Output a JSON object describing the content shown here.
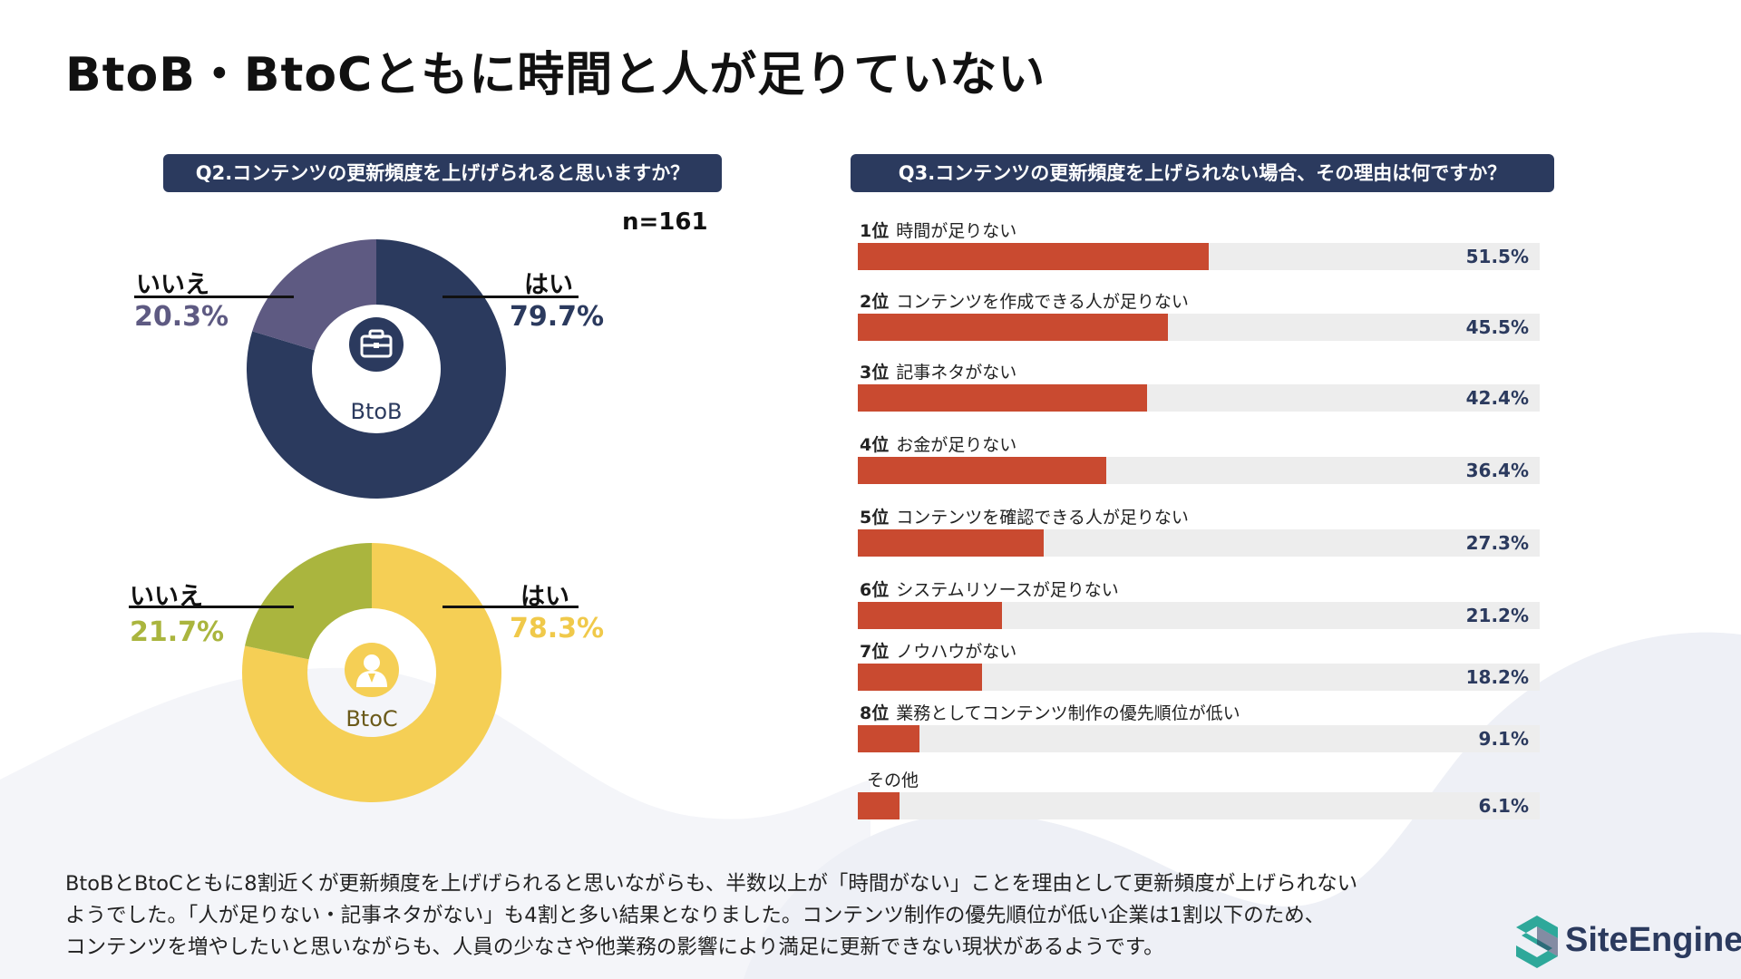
{
  "title": "BtoB・BtoCともに時間と人が足りていない",
  "q2": {
    "question": "Q2.コンテンツの更新頻度を上げげられると思いますか？",
    "n": "n=161"
  },
  "q3": {
    "question": "Q3.コンテンツの更新頻度を上げられない場合、その理由は何ですか？"
  },
  "colors": {
    "navy": "#2b3a5e",
    "purple": "#5e5a82",
    "yellow": "#f5cf55",
    "olive": "#aab53e",
    "bar": "#c94a30",
    "track": "#ededed"
  },
  "icons": {
    "btob": "briefcase-icon",
    "btoc": "person-icon",
    "logo": "siteengine-logo-icon"
  },
  "chart_data": [
    {
      "type": "pie",
      "center_label": "BtoB",
      "slices": [
        {
          "label": "はい",
          "value": 79.7,
          "display": "79.7%"
        },
        {
          "label": "いいえ",
          "value": 20.3,
          "display": "20.3%"
        }
      ]
    },
    {
      "type": "pie",
      "center_label": "BtoC",
      "slices": [
        {
          "label": "はい",
          "value": 78.3,
          "display": "78.3%"
        },
        {
          "label": "いいえ",
          "value": 21.7,
          "display": "21.7%"
        }
      ]
    },
    {
      "type": "bar",
      "orientation": "horizontal",
      "xlim": [
        0,
        100
      ],
      "bars": [
        {
          "rank": "1位",
          "label": "時間が足りない",
          "value": 51.5,
          "display": "51.5%"
        },
        {
          "rank": "2位",
          "label": "コンテンツを作成できる人が足りない",
          "value": 45.5,
          "display": "45.5%"
        },
        {
          "rank": "3位",
          "label": "記事ネタがない",
          "value": 42.4,
          "display": "42.4%"
        },
        {
          "rank": "4位",
          "label": "お金が足りない",
          "value": 36.4,
          "display": "36.4%"
        },
        {
          "rank": "5位",
          "label": "コンテンツを確認できる人が足りない",
          "value": 27.3,
          "display": "27.3%"
        },
        {
          "rank": "6位",
          "label": "システムリソースが足りない",
          "value": 21.2,
          "display": "21.2%"
        },
        {
          "rank": "7位",
          "label": "ノウハウがない",
          "value": 18.2,
          "display": "18.2%"
        },
        {
          "rank": "8位",
          "label": "業務としてコンテンツ制作の優先順位が低い",
          "value": 9.1,
          "display": "9.1%"
        },
        {
          "rank": "",
          "label": "その他",
          "value": 6.1,
          "display": "6.1%"
        }
      ]
    }
  ],
  "footer": {
    "line1": "BtoBとBtoCともに8割近くが更新頻度を上げげられると思いながらも、半数以上が「時間がない」ことを理由として更新頻度が上げられない",
    "line2": "ようでした。「人が足りない・記事ネタがない」も4割と多い結果となりました。コンテンツ制作の優先順位が低い企業は1割以下のため、",
    "line3": "コンテンツを増やしたいと思いながらも、人員の少なさや他業務の影響により満足に更新できない現状があるようです。"
  },
  "logo": {
    "text": "SiteEngine"
  }
}
